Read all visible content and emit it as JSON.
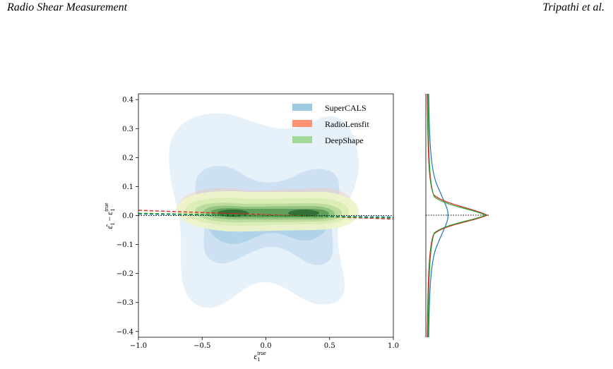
{
  "header": {
    "left_title": "Radio Shear Measurement",
    "right_author": "Tripathi et al."
  },
  "chart_data": {
    "type": "contour",
    "xlabel_base": "ε",
    "xlabel_sub": "1",
    "xlabel_sup": "true",
    "ylabel_hat": "ε̂",
    "ylabel_minus": "−",
    "ylabel_sub": "1",
    "ylabel_sup": "true",
    "xlim": [
      -1.0,
      1.0
    ],
    "ylim": [
      -0.42,
      0.42
    ],
    "xticks": [
      "−1.0",
      "−0.5",
      "0.0",
      "0.5",
      "1.0"
    ],
    "xtick_values": [
      -1.0,
      -0.5,
      0.0,
      0.5,
      1.0
    ],
    "yticks": [
      "−0.4",
      "−0.3",
      "−0.2",
      "−0.1",
      "0.0",
      "0.1",
      "0.2",
      "0.3",
      "0.4"
    ],
    "ytick_values": [
      -0.4,
      -0.3,
      -0.2,
      -0.1,
      0.0,
      0.1,
      0.2,
      0.3,
      0.4
    ],
    "legend_position": "top-right",
    "series": [
      {
        "name": "SuperCALS",
        "color": "#6baed6",
        "fit_line": {
          "x": [
            -1.0,
            1.0
          ],
          "y": [
            0.005,
            -0.005
          ]
        }
      },
      {
        "name": "RadioLensfit",
        "color": "#fb6a4a",
        "fit_line": {
          "x": [
            -1.0,
            1.0
          ],
          "y": [
            0.018,
            -0.012
          ]
        }
      },
      {
        "name": "DeepShape",
        "color": "#74c476",
        "fit_line": {
          "x": [
            -1.0,
            1.0
          ],
          "y": [
            0.008,
            -0.008
          ]
        }
      }
    ],
    "reference_line_y": 0.0,
    "marginal_panel": "right"
  }
}
